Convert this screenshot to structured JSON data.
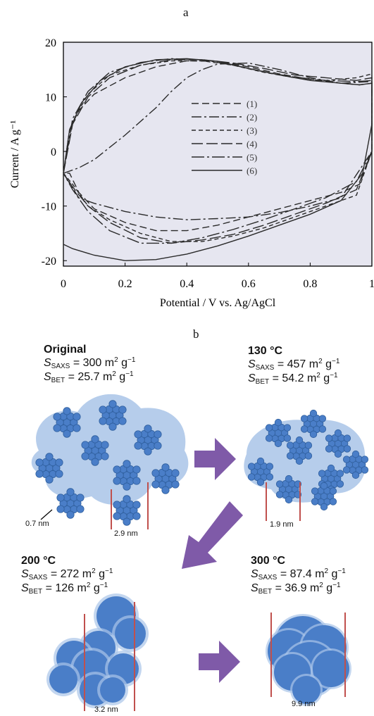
{
  "figure": {
    "panel_a_label": "a",
    "panel_b_label": "b"
  },
  "chart_data": {
    "type": "line",
    "xlabel": "Potential / V vs. Ag/AgCl",
    "ylabel": "Current / A g⁻¹",
    "xlim": [
      0,
      1
    ],
    "ylim": [
      -21,
      20
    ],
    "x_ticks": [
      "0",
      "0.2",
      "0.4",
      "0.6",
      "0.8",
      "1"
    ],
    "y_ticks": [
      "20",
      "10",
      "0",
      "-10",
      "-20"
    ],
    "grid": false,
    "legend_position": "center-right",
    "background": "#e6e6f0",
    "series": [
      {
        "name": "(1)",
        "dash": "10 5",
        "x": [
          0,
          0.02,
          0.05,
          0.1,
          0.2,
          0.3,
          0.4,
          0.5,
          0.6,
          0.7,
          0.8,
          0.9,
          0.96,
          1.0,
          1.0,
          0.96,
          0.9,
          0.8,
          0.7,
          0.6,
          0.5,
          0.4,
          0.3,
          0.2,
          0.1,
          0.05,
          0.02,
          0
        ],
        "y": [
          -4,
          4,
          7.5,
          10.5,
          13.5,
          15.5,
          16.6,
          16.5,
          15.5,
          14.2,
          13.2,
          12.5,
          12.2,
          12.5,
          0,
          -6,
          -7.5,
          -9,
          -10.5,
          -12,
          -13.5,
          -14.5,
          -14.5,
          -13,
          -10.5,
          -7.5,
          -4,
          -4
        ]
      },
      {
        "name": "(2)",
        "dash": "14 4 3 4",
        "x": [
          0,
          0.05,
          0.1,
          0.2,
          0.3,
          0.35,
          0.4,
          0.45,
          0.5,
          0.6,
          0.7,
          0.8,
          0.9,
          1.0,
          1.0,
          0.9,
          0.8,
          0.7,
          0.6,
          0.5,
          0.4,
          0.3,
          0.2,
          0.1,
          0.05,
          0
        ],
        "y": [
          -4,
          -3,
          -1.5,
          3,
          8,
          11,
          13.5,
          15,
          16,
          16.2,
          15,
          13.5,
          12.5,
          12.8,
          0,
          -8.5,
          -10,
          -11.2,
          -12,
          -12.3,
          -12.5,
          -12,
          -11,
          -9.5,
          -8.5,
          -4
        ]
      },
      {
        "name": "(3)",
        "dash": "6 4",
        "x": [
          0,
          0.03,
          0.08,
          0.15,
          0.25,
          0.35,
          0.45,
          0.55,
          0.65,
          0.75,
          0.85,
          0.95,
          1.0,
          1.0,
          0.95,
          0.85,
          0.75,
          0.65,
          0.55,
          0.45,
          0.35,
          0.25,
          0.15,
          0.08,
          0.03,
          0
        ],
        "y": [
          -4,
          5.5,
          10.5,
          14,
          15.8,
          16.6,
          16.6,
          15.8,
          14.5,
          13.5,
          13,
          13.5,
          14.2,
          0,
          -8,
          -10,
          -12,
          -14,
          -15.5,
          -16.5,
          -16.5,
          -15,
          -12.5,
          -10,
          -6,
          -4
        ]
      },
      {
        "name": "(4)",
        "dash": "16 5",
        "x": [
          0,
          0.03,
          0.08,
          0.15,
          0.25,
          0.35,
          0.45,
          0.55,
          0.65,
          0.75,
          0.85,
          0.95,
          1.0,
          1.0,
          0.95,
          0.85,
          0.75,
          0.65,
          0.55,
          0.45,
          0.35,
          0.25,
          0.15,
          0.08,
          0.03,
          0
        ],
        "y": [
          -4,
          5,
          10,
          13.5,
          15.8,
          16.8,
          16.8,
          16.2,
          15.2,
          14,
          13.5,
          13,
          13.5,
          0,
          -7,
          -9.5,
          -11.5,
          -13.5,
          -15.2,
          -16.2,
          -16.8,
          -15.8,
          -13,
          -10,
          -6.5,
          -4
        ]
      },
      {
        "name": "(5)",
        "dash": "18 4 3 4",
        "x": [
          0,
          0.03,
          0.08,
          0.15,
          0.25,
          0.35,
          0.45,
          0.55,
          0.65,
          0.75,
          0.85,
          0.95,
          1.0,
          1.0,
          0.95,
          0.85,
          0.75,
          0.65,
          0.55,
          0.45,
          0.35,
          0.25,
          0.15,
          0.08,
          0.03,
          0
        ],
        "y": [
          -4,
          6,
          11,
          14.5,
          16.3,
          17,
          16.8,
          15.8,
          14.6,
          13.6,
          13,
          12.8,
          13,
          0,
          -5.5,
          -8.5,
          -10.5,
          -12.5,
          -14.3,
          -15.8,
          -16.8,
          -16.8,
          -14.5,
          -11,
          -7,
          -4
        ]
      },
      {
        "name": "(6)",
        "dash": "",
        "x": [
          0,
          0.02,
          0.06,
          0.12,
          0.2,
          0.3,
          0.4,
          0.5,
          0.6,
          0.7,
          0.8,
          0.9,
          0.96,
          1.0,
          1.0,
          0.97,
          0.9,
          0.8,
          0.7,
          0.6,
          0.5,
          0.4,
          0.3,
          0.2,
          0.1,
          0.03,
          0
        ],
        "y": [
          -4,
          4,
          9,
          13,
          15.5,
          16.8,
          17,
          16.5,
          15.2,
          14,
          13,
          12.5,
          12.2,
          12.5,
          5,
          -4,
          -9,
          -11.5,
          -13.5,
          -15.5,
          -17.3,
          -18.8,
          -19.8,
          -20,
          -19,
          -17.8,
          -17
        ]
      }
    ]
  },
  "stages": {
    "original": {
      "title": "Original",
      "saxs": "= 300 m",
      "bet": "= 25.7 m",
      "scale_small": "0.7 nm",
      "scale": "2.9 nm"
    },
    "t130": {
      "title": "130 °C",
      "saxs": "= 457 m",
      "bet": "= 54.2 m",
      "scale": "1.9 nm"
    },
    "t200": {
      "title": "200 °C",
      "saxs": "= 272 m",
      "bet": "= 126 m",
      "scale": "3.2 nm"
    },
    "t300": {
      "title": "300 °C",
      "saxs": "= 87.4 m",
      "bet": "= 36.9 m",
      "scale": "9.9 nm"
    }
  },
  "symbols": {
    "S": "S",
    "saxs_sub": "SAXS",
    "bet_sub": "BET",
    "m_exp": "2",
    "g": " g",
    "g_exp": "−1"
  },
  "colors": {
    "sphere": "#4a7ec8",
    "sphere_edge": "#2f5f9e",
    "halo": "#a9c4e8",
    "arrow": "#7f5aa8",
    "scalebar": "#c0504d",
    "plot_bg": "#e6e6f0"
  }
}
